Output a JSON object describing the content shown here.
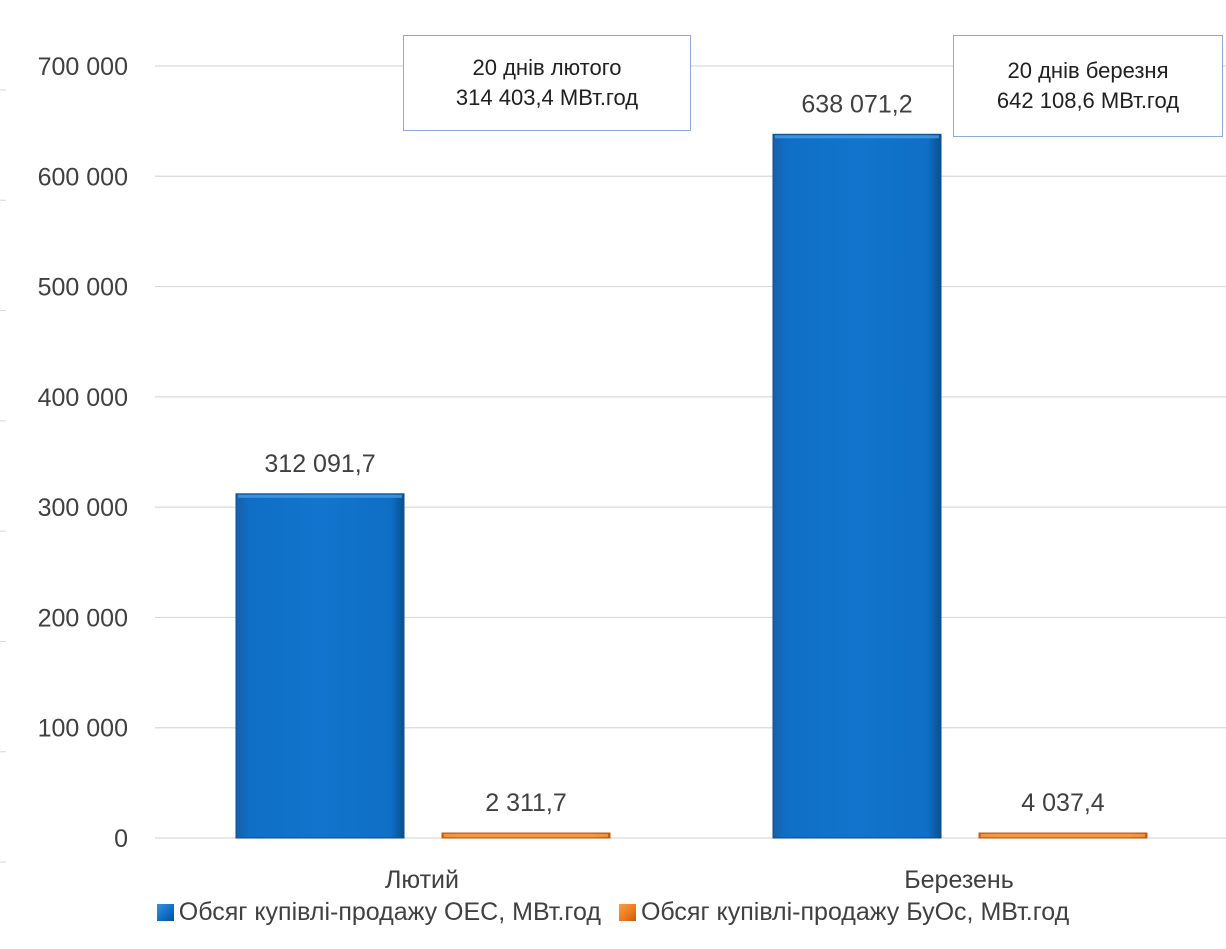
{
  "chart_data": {
    "type": "bar",
    "categories": [
      "Лютий",
      "Березень"
    ],
    "series": [
      {
        "name": "Обсяг купівлі-продажу ОЕС, МВт.год",
        "values": [
          312091.7,
          638071.2
        ],
        "labels": [
          "312 091,7",
          "638 071,2"
        ],
        "color": "#0f6fc6"
      },
      {
        "name": "Обсяг купівлі-продажу БуОс, МВт.год",
        "values": [
          2311.7,
          4037.4
        ],
        "labels": [
          "2 311,7",
          "4 037,4"
        ],
        "color": "#ee7b1e"
      }
    ],
    "ylim": [
      0,
      700000
    ],
    "yticks": [
      0,
      100000,
      200000,
      300000,
      400000,
      500000,
      600000,
      700000
    ],
    "ytick_labels": [
      "0",
      "100 000",
      "200 000",
      "300 000",
      "400 000",
      "500 000",
      "600 000",
      "700 000"
    ],
    "grid": true,
    "legend": "bottom",
    "annotations": [
      {
        "line1": "20 днів лютого",
        "line2": "314 403,4 МВт.год"
      },
      {
        "line1": "20 днів березня",
        "line2": "642 108,6 МВт.год"
      }
    ]
  }
}
